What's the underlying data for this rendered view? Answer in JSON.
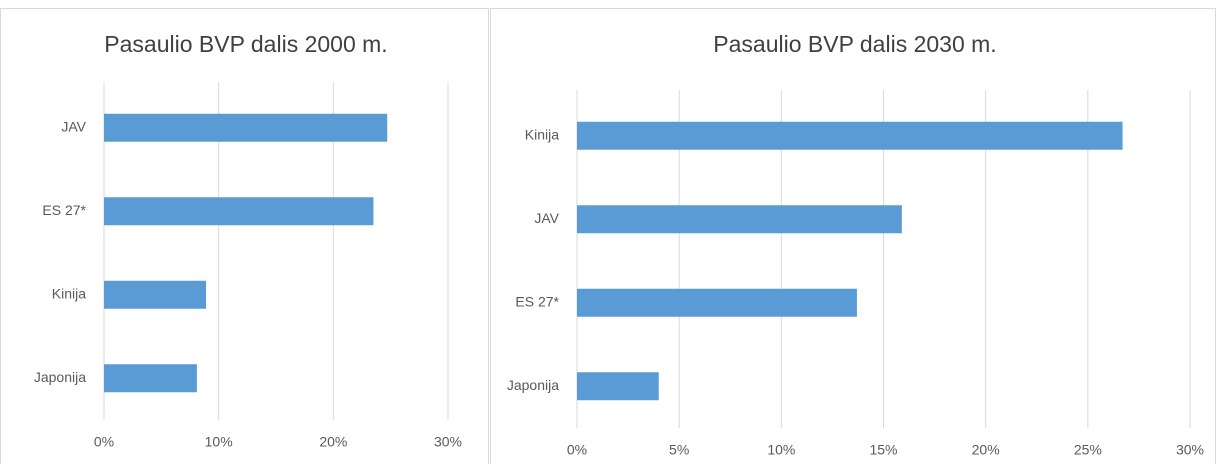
{
  "chart_data": [
    {
      "type": "bar",
      "orientation": "horizontal",
      "title": "Pasaulio BVP dalis 2000 m.",
      "categories": [
        "JAV",
        "ES 27*",
        "Kinija",
        "Japonija"
      ],
      "values": [
        24.7,
        23.5,
        8.9,
        8.1
      ],
      "color": "#5b9bd5",
      "xlim": [
        0,
        30
      ],
      "xticks": [
        {
          "value": 0,
          "label": "0%"
        },
        {
          "value": 10,
          "label": "10%"
        },
        {
          "value": 20,
          "label": "20%"
        },
        {
          "value": 30,
          "label": "30%"
        }
      ],
      "grid": true
    },
    {
      "type": "bar",
      "orientation": "horizontal",
      "title": "Pasaulio BVP dalis 2030 m.",
      "categories": [
        "Kinija",
        "JAV",
        "ES 27*",
        "Japonija"
      ],
      "values": [
        26.7,
        15.9,
        13.7,
        4.0
      ],
      "color": "#5b9bd5",
      "xlim": [
        0,
        30
      ],
      "xticks": [
        {
          "value": 0,
          "label": "0%"
        },
        {
          "value": 5,
          "label": "5%"
        },
        {
          "value": 10,
          "label": "10%"
        },
        {
          "value": 15,
          "label": "15%"
        },
        {
          "value": 20,
          "label": "20%"
        },
        {
          "value": 25,
          "label": "25%"
        },
        {
          "value": 30,
          "label": "30%"
        }
      ],
      "grid": true
    }
  ]
}
